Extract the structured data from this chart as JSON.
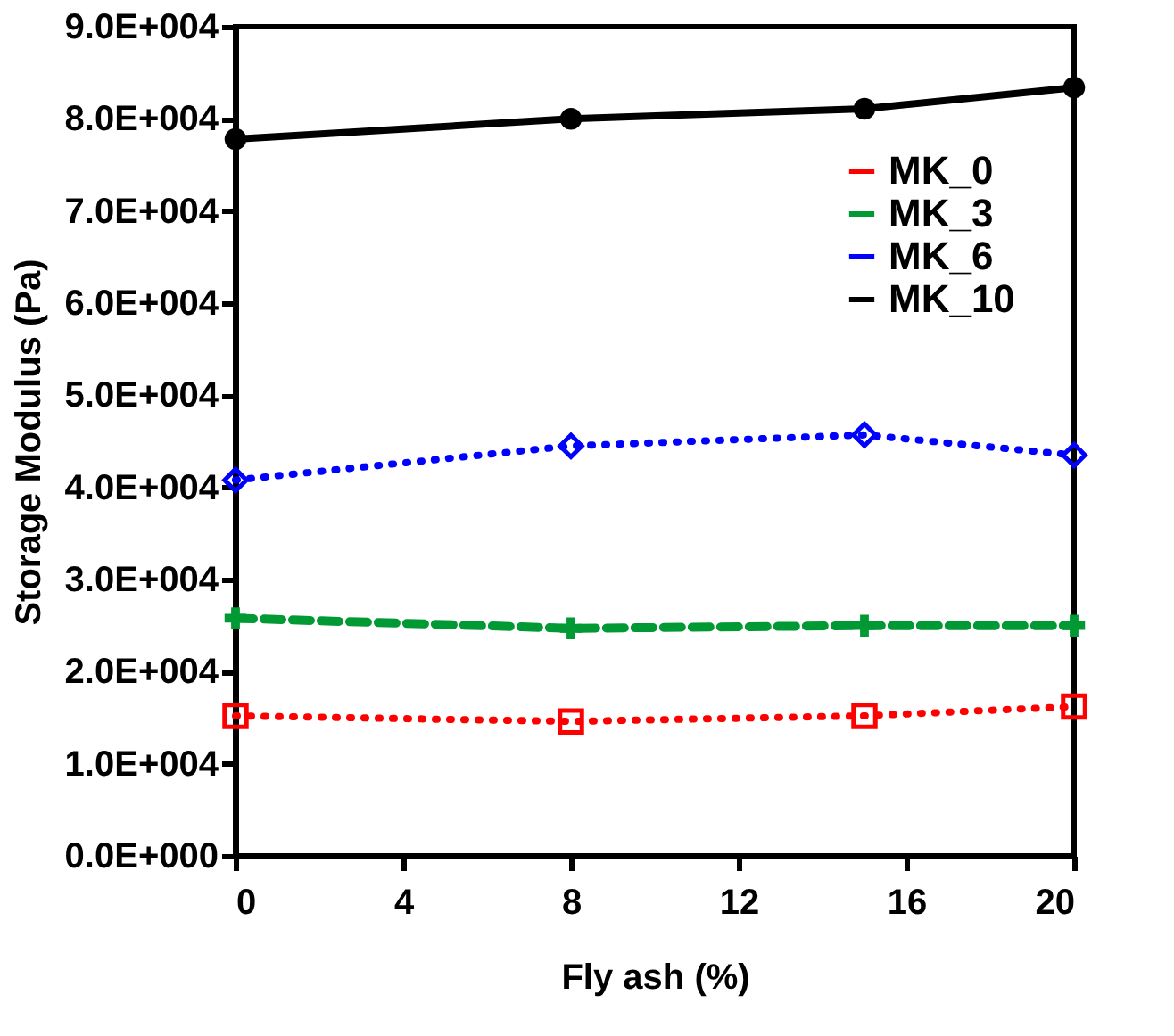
{
  "chart_data": {
    "type": "line",
    "xlabel": "Fly ash (%)",
    "ylabel": "Storage Modulus (Pa)",
    "xlim": [
      0,
      20
    ],
    "xticks": [
      0,
      4,
      8,
      12,
      16,
      20
    ],
    "ylim": [
      0,
      90000
    ],
    "yticks": [
      {
        "value": 0,
        "label": "0.0E+000"
      },
      {
        "value": 10000,
        "label": "1.0E+004"
      },
      {
        "value": 20000,
        "label": "2.0E+004"
      },
      {
        "value": 30000,
        "label": "3.0E+004"
      },
      {
        "value": 40000,
        "label": "4.0E+004"
      },
      {
        "value": 50000,
        "label": "5.0E+004"
      },
      {
        "value": 60000,
        "label": "6.0E+004"
      },
      {
        "value": 70000,
        "label": "7.0E+004"
      },
      {
        "value": 80000,
        "label": "8.0E+004"
      },
      {
        "value": 90000,
        "label": "9.0E+004"
      }
    ],
    "x": [
      0,
      8,
      15,
      20
    ],
    "series": [
      {
        "name": "MK_0",
        "color": "#ff0000",
        "values": [
          15200,
          14600,
          15200,
          16200
        ],
        "marker": "square",
        "line_style": "dotted"
      },
      {
        "name": "MK_3",
        "color": "#009933",
        "values": [
          25800,
          24700,
          25000,
          25000
        ],
        "marker": "cross",
        "line_style": "dashed"
      },
      {
        "name": "MK_6",
        "color": "#0000ff",
        "values": [
          40800,
          44500,
          45700,
          43500
        ],
        "marker": "diamond",
        "line_style": "dotted"
      },
      {
        "name": "MK_10",
        "color": "#000000",
        "values": [
          77800,
          80000,
          81100,
          83400
        ],
        "marker": "circle",
        "line_style": "solid"
      }
    ],
    "legend": "top right",
    "grid": false
  }
}
